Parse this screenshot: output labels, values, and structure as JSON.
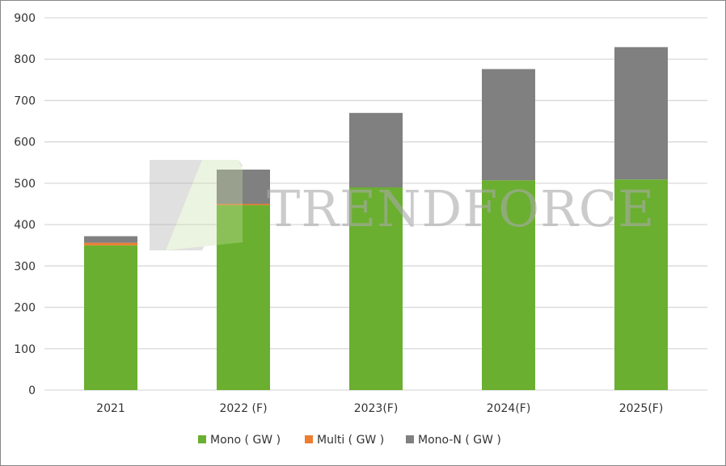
{
  "chart_data": {
    "type": "bar",
    "stacked": true,
    "title": "",
    "xlabel": "",
    "ylabel": "",
    "categories": [
      "2021",
      "2022 (F)",
      "2023(F)",
      "2024(F)",
      "2025(F)"
    ],
    "series": [
      {
        "name": "Mono ( GW )",
        "color": "#6aaf2f",
        "values": [
          350,
          447,
          490,
          507,
          509
        ]
      },
      {
        "name": "Multi ( GW )",
        "color": "#ed7d31",
        "values": [
          6,
          3,
          0,
          0,
          0
        ]
      },
      {
        "name": "Mono-N ( GW )",
        "color": "#808080",
        "values": [
          16,
          83,
          180,
          269,
          320
        ]
      }
    ],
    "ylim": [
      0,
      900
    ],
    "yticks": [
      0,
      100,
      200,
      300,
      400,
      500,
      600,
      700,
      800,
      900
    ],
    "grid": true,
    "legend": "bottom",
    "watermark": "TRENDFORCE"
  }
}
